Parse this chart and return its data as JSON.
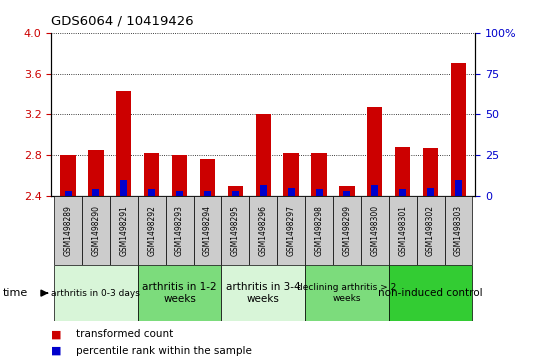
{
  "title": "GDS6064 / 10419426",
  "samples": [
    "GSM1498289",
    "GSM1498290",
    "GSM1498291",
    "GSM1498292",
    "GSM1498293",
    "GSM1498294",
    "GSM1498295",
    "GSM1498296",
    "GSM1498297",
    "GSM1498298",
    "GSM1498299",
    "GSM1498300",
    "GSM1498301",
    "GSM1498302",
    "GSM1498303"
  ],
  "transformed_count": [
    2.8,
    2.85,
    3.43,
    2.82,
    2.8,
    2.76,
    2.5,
    3.2,
    2.82,
    2.82,
    2.5,
    3.27,
    2.88,
    2.87,
    3.7
  ],
  "percentile_rank": [
    3,
    4,
    10,
    4,
    3,
    3,
    3,
    7,
    5,
    4,
    3,
    7,
    4,
    5,
    10
  ],
  "ylim_left": [
    2.4,
    4.0
  ],
  "ylim_right": [
    0,
    100
  ],
  "yticks_left": [
    2.4,
    2.8,
    3.2,
    3.6,
    4.0
  ],
  "yticks_right": [
    0,
    25,
    50,
    75,
    100
  ],
  "ylabel_left_color": "#cc0000",
  "ylabel_right_color": "#0000cc",
  "bar_color_red": "#cc0000",
  "bar_color_blue": "#0000cc",
  "groups": [
    {
      "label": "arthritis in 0-3 days",
      "count": 3,
      "color": "#d8f5d8",
      "fontsize": 6.5
    },
    {
      "label": "arthritis in 1-2\nweeks",
      "count": 3,
      "color": "#7cdc7c",
      "fontsize": 7.5
    },
    {
      "label": "arthritis in 3-4\nweeks",
      "count": 3,
      "color": "#d8f5d8",
      "fontsize": 7.5
    },
    {
      "label": "declining arthritis > 2\nweeks",
      "count": 3,
      "color": "#7cdc7c",
      "fontsize": 6.5
    },
    {
      "label": "non-induced control",
      "count": 3,
      "color": "#33cc33",
      "fontsize": 7.5
    }
  ],
  "legend_red_label": "transformed count",
  "legend_blue_label": "percentile rank within the sample",
  "time_label": "time",
  "bar_width": 0.55,
  "blue_bar_width": 0.25,
  "baseline": 2.4,
  "sample_box_color": "#cccccc",
  "right_axis_ticks": [
    "0",
    "25",
    "50",
    "75",
    "100%"
  ]
}
